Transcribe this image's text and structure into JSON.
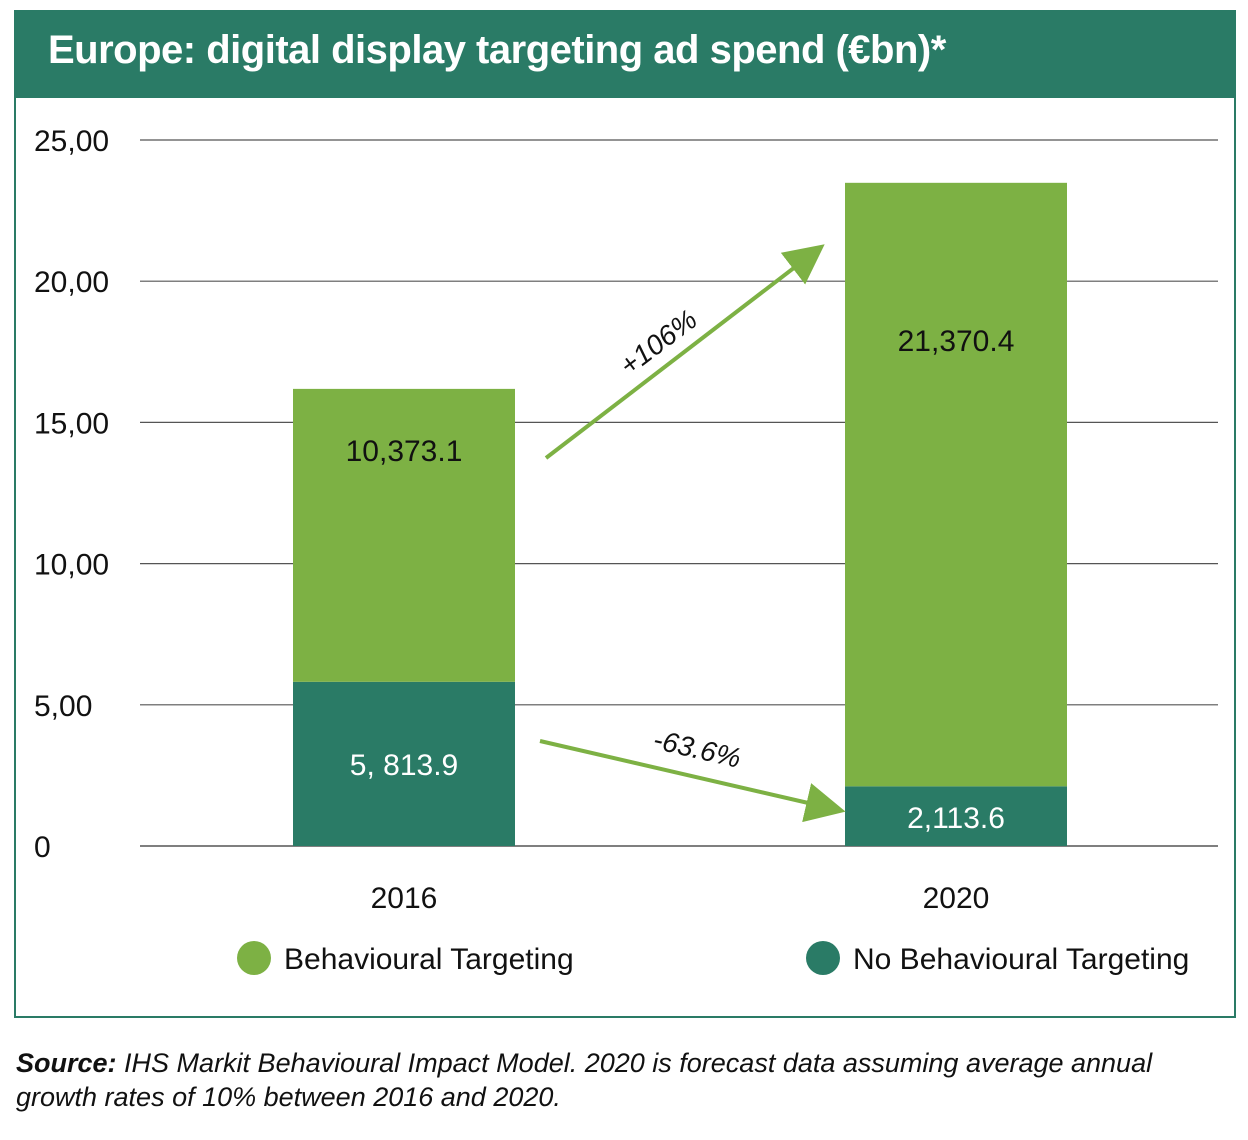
{
  "title": "Europe: digital display targeting ad spend (€bn)*",
  "source_label": "Source:",
  "source_text": "IHS Markit Behavioural Impact Model. 2020 is forecast data assuming average annual growth rates of 10% between 2016 and 2020.",
  "colors": {
    "behavioural": "#7db144",
    "no_behavioural": "#2a7b66",
    "arrow": "#7db144",
    "grid": "#555555"
  },
  "chart_data": {
    "type": "bar",
    "stacked": true,
    "categories": [
      "2016",
      "2020"
    ],
    "ylim": [
      0,
      25
    ],
    "yticks": [
      0,
      5,
      10,
      15,
      20,
      25
    ],
    "ytick_labels": [
      "0",
      "5,00",
      "10,00",
      "15,00",
      "20,00",
      "25,00"
    ],
    "grid": true,
    "legend_position": "bottom",
    "series": [
      {
        "name": "No Behavioural Targeting",
        "values": [
          5.8139,
          2.1136
        ],
        "labels": [
          "5, 813.9",
          "2,113.6"
        ]
      },
      {
        "name": "Behavioural Targeting",
        "values": [
          10.3731,
          21.3704
        ],
        "labels": [
          "10,373.1",
          "21,370.4"
        ]
      }
    ],
    "legend_order": [
      "Behavioural Targeting",
      "No Behavioural Targeting"
    ],
    "annotations": [
      {
        "text": "+106%",
        "series": "Behavioural Targeting"
      },
      {
        "text": "-63.6%",
        "series": "No Behavioural Targeting"
      }
    ]
  }
}
